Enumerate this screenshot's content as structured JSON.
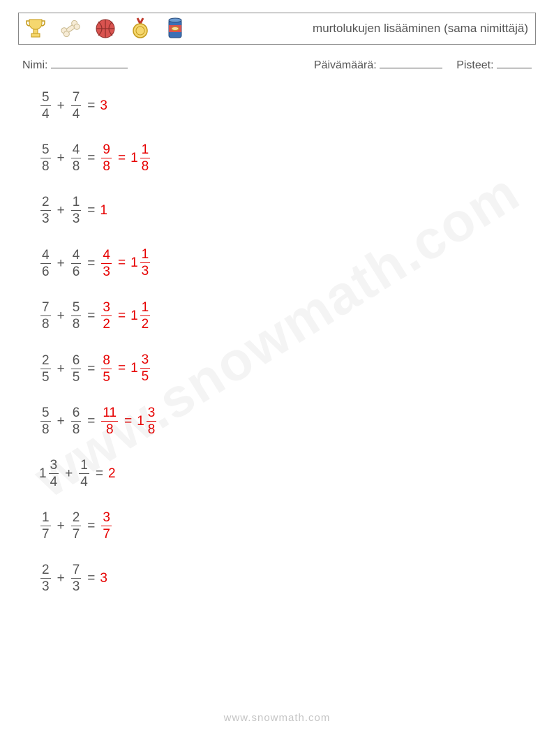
{
  "header": {
    "title": "murtolukujen lisääminen (sama nimittäjä)",
    "icons": [
      "trophy-icon",
      "bone-icon",
      "basketball-icon",
      "medal-icon",
      "can-icon"
    ]
  },
  "info": {
    "name_label": "Nimi:",
    "date_label": "Päivämäärä:",
    "score_label": "Pisteet:",
    "name_blank_width": 110,
    "date_blank_width": 90,
    "score_blank_width": 50
  },
  "style": {
    "text_color": "#555555",
    "answer_color": "#e60000",
    "font_size_problem": 19,
    "font_size_title": 17,
    "font_size_info": 16,
    "problem_gap": 30
  },
  "problems": [
    {
      "left": {
        "terms": [
          {
            "type": "frac",
            "n": "5",
            "d": "4"
          },
          {
            "type": "frac",
            "n": "7",
            "d": "4"
          }
        ]
      },
      "answers": [
        {
          "type": "int",
          "v": "3"
        }
      ]
    },
    {
      "left": {
        "terms": [
          {
            "type": "frac",
            "n": "5",
            "d": "8"
          },
          {
            "type": "frac",
            "n": "4",
            "d": "8"
          }
        ]
      },
      "answers": [
        {
          "type": "frac",
          "n": "9",
          "d": "8"
        },
        {
          "type": "mixed",
          "w": "1",
          "n": "1",
          "d": "8"
        }
      ]
    },
    {
      "left": {
        "terms": [
          {
            "type": "frac",
            "n": "2",
            "d": "3"
          },
          {
            "type": "frac",
            "n": "1",
            "d": "3"
          }
        ]
      },
      "answers": [
        {
          "type": "int",
          "v": "1"
        }
      ]
    },
    {
      "left": {
        "terms": [
          {
            "type": "frac",
            "n": "4",
            "d": "6"
          },
          {
            "type": "frac",
            "n": "4",
            "d": "6"
          }
        ]
      },
      "answers": [
        {
          "type": "frac",
          "n": "4",
          "d": "3"
        },
        {
          "type": "mixed",
          "w": "1",
          "n": "1",
          "d": "3"
        }
      ]
    },
    {
      "left": {
        "terms": [
          {
            "type": "frac",
            "n": "7",
            "d": "8"
          },
          {
            "type": "frac",
            "n": "5",
            "d": "8"
          }
        ]
      },
      "answers": [
        {
          "type": "frac",
          "n": "3",
          "d": "2"
        },
        {
          "type": "mixed",
          "w": "1",
          "n": "1",
          "d": "2"
        }
      ]
    },
    {
      "left": {
        "terms": [
          {
            "type": "frac",
            "n": "2",
            "d": "5"
          },
          {
            "type": "frac",
            "n": "6",
            "d": "5"
          }
        ]
      },
      "answers": [
        {
          "type": "frac",
          "n": "8",
          "d": "5"
        },
        {
          "type": "mixed",
          "w": "1",
          "n": "3",
          "d": "5"
        }
      ]
    },
    {
      "left": {
        "terms": [
          {
            "type": "frac",
            "n": "5",
            "d": "8"
          },
          {
            "type": "frac",
            "n": "6",
            "d": "8"
          }
        ]
      },
      "answers": [
        {
          "type": "frac",
          "n": "11",
          "d": "8"
        },
        {
          "type": "mixed",
          "w": "1",
          "n": "3",
          "d": "8"
        }
      ]
    },
    {
      "left": {
        "terms": [
          {
            "type": "mixed",
            "w": "1",
            "n": "3",
            "d": "4"
          },
          {
            "type": "frac",
            "n": "1",
            "d": "4"
          }
        ]
      },
      "answers": [
        {
          "type": "int",
          "v": "2"
        }
      ]
    },
    {
      "left": {
        "terms": [
          {
            "type": "frac",
            "n": "1",
            "d": "7"
          },
          {
            "type": "frac",
            "n": "2",
            "d": "7"
          }
        ]
      },
      "answers": [
        {
          "type": "frac",
          "n": "3",
          "d": "7"
        }
      ]
    },
    {
      "left": {
        "terms": [
          {
            "type": "frac",
            "n": "2",
            "d": "3"
          },
          {
            "type": "frac",
            "n": "7",
            "d": "3"
          }
        ]
      },
      "answers": [
        {
          "type": "int",
          "v": "3"
        }
      ]
    }
  ],
  "watermark": "www.snowmath.com",
  "footer": "www.snowmath.com",
  "icon_colors": {
    "trophy": "#e8b923",
    "bone": "#f5e6c8",
    "basketball": "#d9534f",
    "medal": "#e8b923",
    "can": "#3b6fb5"
  }
}
